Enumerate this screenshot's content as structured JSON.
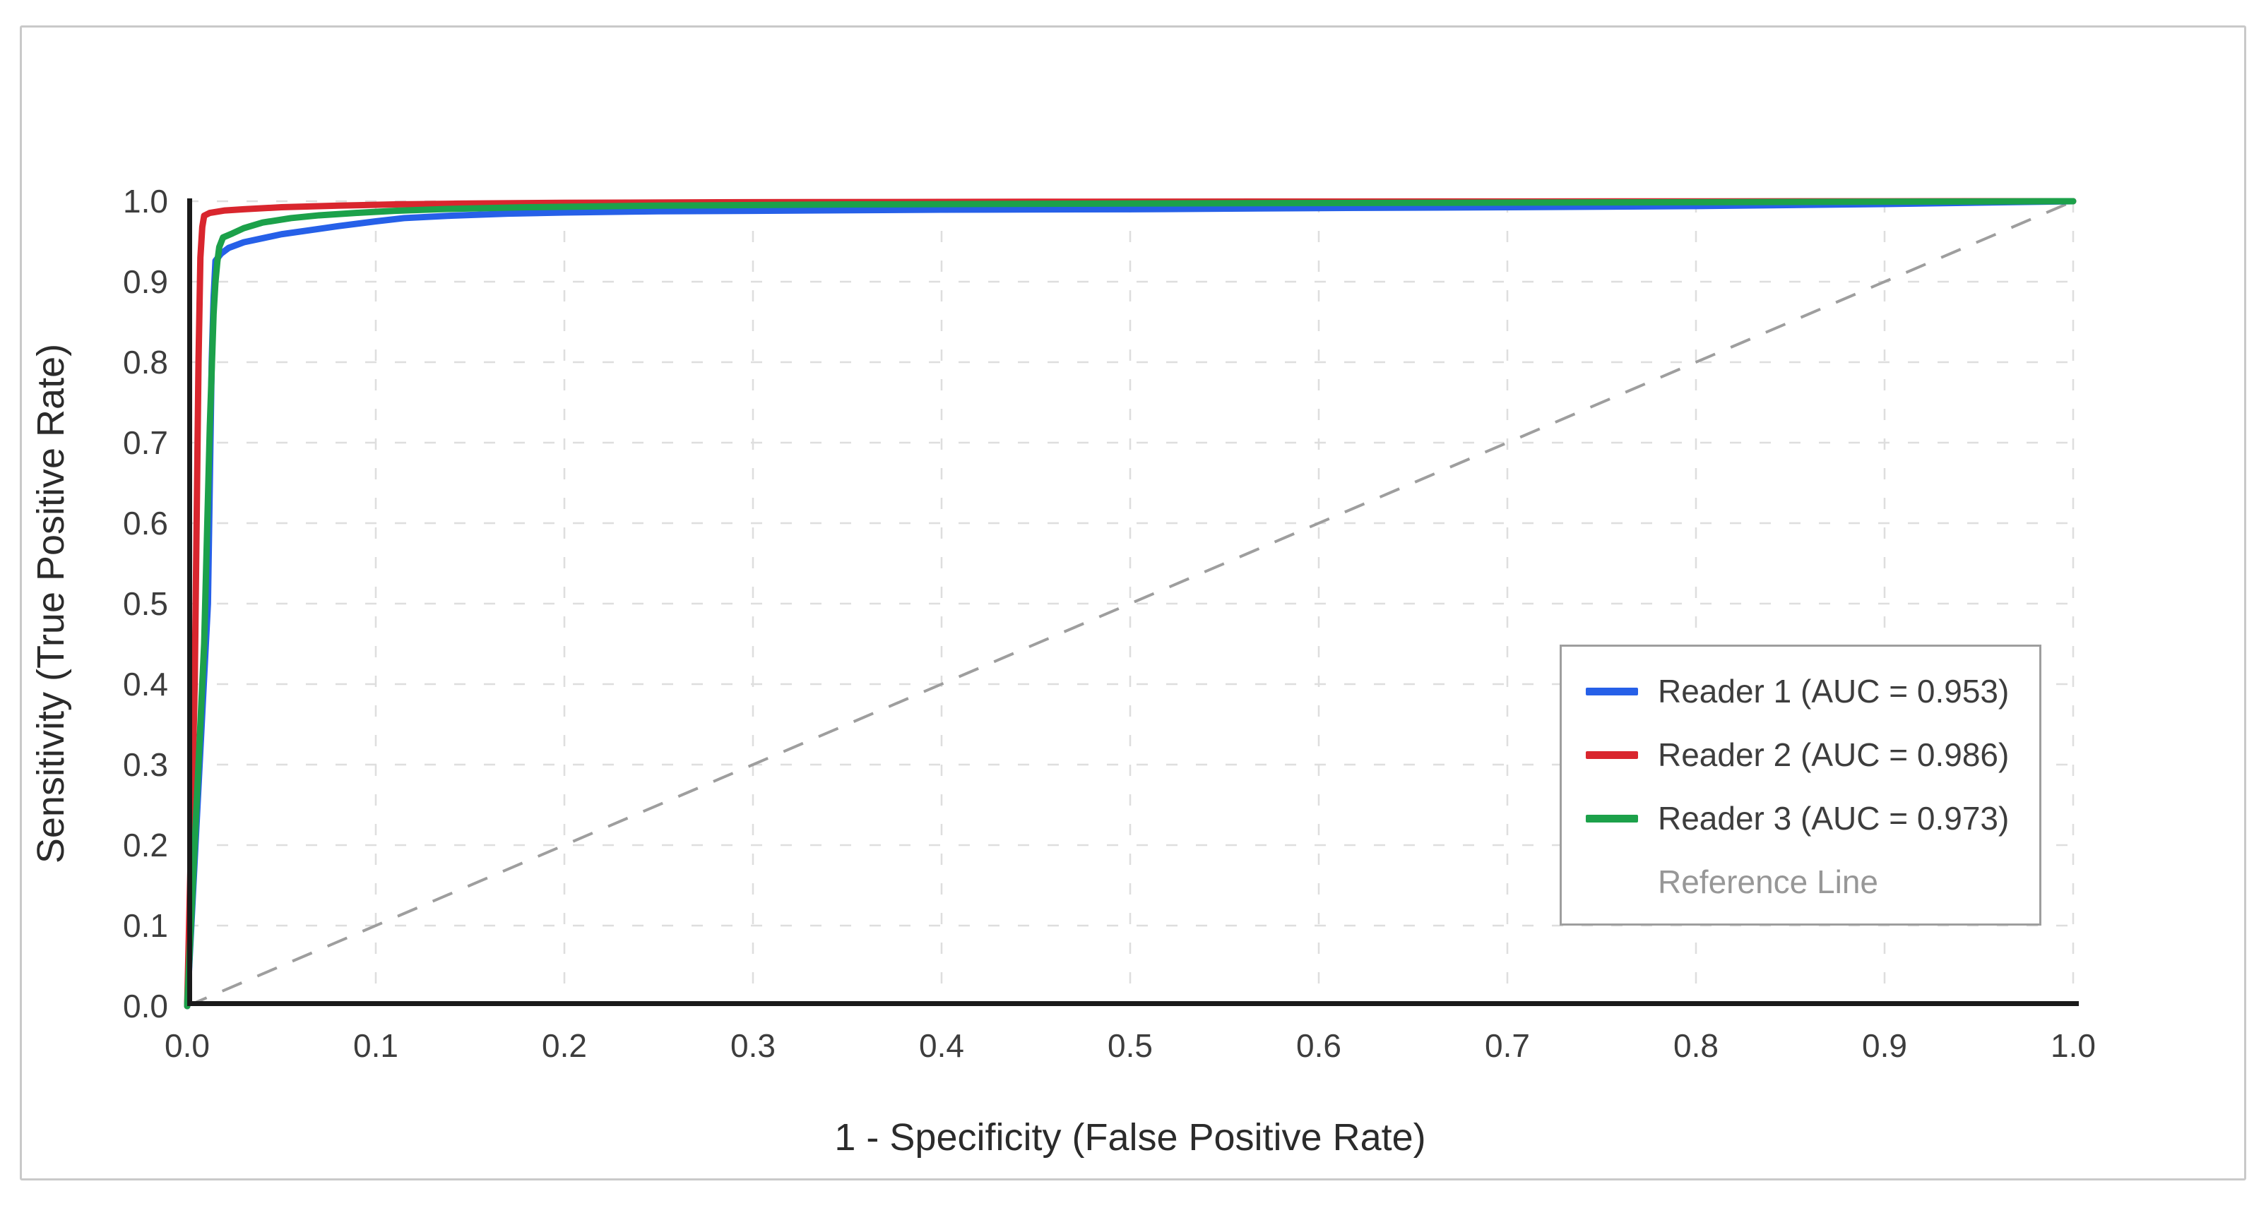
{
  "chart_data": {
    "type": "line",
    "title": "",
    "xlabel": "1 - Specificity (False Positive Rate)",
    "ylabel": "Sensitivity (True Positive Rate)",
    "xlim": [
      0,
      1
    ],
    "ylim": [
      0,
      1
    ],
    "grid": true,
    "grid_style": "dashed",
    "legend_position": "center-right",
    "x_ticks": [
      {
        "v": 0.0,
        "label": "0.0"
      },
      {
        "v": 0.1,
        "label": "0.1"
      },
      {
        "v": 0.2,
        "label": "0.2"
      },
      {
        "v": 0.3,
        "label": "0.3"
      },
      {
        "v": 0.4,
        "label": "0.4"
      },
      {
        "v": 0.5,
        "label": "0.5"
      },
      {
        "v": 0.6,
        "label": "0.6"
      },
      {
        "v": 0.7,
        "label": "0.7"
      },
      {
        "v": 0.8,
        "label": "0.8"
      },
      {
        "v": 0.9,
        "label": "0.9"
      },
      {
        "v": 1.0,
        "label": "1.0"
      }
    ],
    "y_ticks": [
      {
        "v": 0.0,
        "label": "0.0"
      },
      {
        "v": 0.1,
        "label": "0.1"
      },
      {
        "v": 0.2,
        "label": "0.2"
      },
      {
        "v": 0.3,
        "label": "0.3"
      },
      {
        "v": 0.4,
        "label": "0.4"
      },
      {
        "v": 0.5,
        "label": "0.5"
      },
      {
        "v": 0.6,
        "label": "0.6"
      },
      {
        "v": 0.7,
        "label": "0.7"
      },
      {
        "v": 0.8,
        "label": "0.8"
      },
      {
        "v": 0.9,
        "label": "0.9"
      },
      {
        "v": 1.0,
        "label": "1.0"
      }
    ],
    "series": [
      {
        "name": "Reader 1",
        "auc": 0.953,
        "label": "Reader 1 (AUC = 0.953)",
        "color": "#2660e8",
        "points": [
          [
            0,
            0
          ],
          [
            0.011,
            0.5
          ],
          [
            0.013,
            0.8
          ],
          [
            0.014,
            0.88
          ],
          [
            0.015,
            0.926
          ],
          [
            0.018,
            0.935
          ],
          [
            0.022,
            0.942
          ],
          [
            0.03,
            0.949
          ],
          [
            0.04,
            0.954
          ],
          [
            0.05,
            0.959
          ],
          [
            0.065,
            0.964
          ],
          [
            0.08,
            0.969
          ],
          [
            0.1,
            0.975
          ],
          [
            0.115,
            0.979
          ],
          [
            0.14,
            0.982
          ],
          [
            0.17,
            0.9845
          ],
          [
            0.2,
            0.986
          ],
          [
            0.25,
            0.9875
          ],
          [
            0.3,
            0.988
          ],
          [
            0.4,
            0.9895
          ],
          [
            0.5,
            0.99
          ],
          [
            0.6,
            0.9915
          ],
          [
            0.7,
            0.9925
          ],
          [
            0.8,
            0.994
          ],
          [
            0.9,
            0.9965
          ],
          [
            1,
            1
          ]
        ]
      },
      {
        "name": "Reader 2",
        "auc": 0.986,
        "label": "Reader 2 (AUC = 0.986)",
        "color": "#d9262e",
        "points": [
          [
            0,
            0
          ],
          [
            0.004,
            0.4
          ],
          [
            0.006,
            0.8
          ],
          [
            0.007,
            0.93
          ],
          [
            0.008,
            0.968
          ],
          [
            0.009,
            0.982
          ],
          [
            0.012,
            0.9855
          ],
          [
            0.02,
            0.9885
          ],
          [
            0.03,
            0.99
          ],
          [
            0.05,
            0.9925
          ],
          [
            0.08,
            0.9945
          ],
          [
            0.11,
            0.996
          ],
          [
            0.15,
            0.9972
          ],
          [
            0.2,
            0.998
          ],
          [
            0.3,
            0.9988
          ],
          [
            0.45,
            0.9993
          ],
          [
            0.6,
            0.9996
          ],
          [
            0.8,
            0.9998
          ],
          [
            1,
            1
          ]
        ]
      },
      {
        "name": "Reader 3",
        "auc": 0.973,
        "label": "Reader 3 (AUC = 0.973)",
        "color": "#1ca14a",
        "points": [
          [
            0,
            0
          ],
          [
            0.009,
            0.45
          ],
          [
            0.012,
            0.72
          ],
          [
            0.014,
            0.86
          ],
          [
            0.015,
            0.9
          ],
          [
            0.016,
            0.925
          ],
          [
            0.017,
            0.943
          ],
          [
            0.019,
            0.955
          ],
          [
            0.024,
            0.96
          ],
          [
            0.03,
            0.9665
          ],
          [
            0.04,
            0.9735
          ],
          [
            0.055,
            0.979
          ],
          [
            0.07,
            0.9825
          ],
          [
            0.09,
            0.9855
          ],
          [
            0.11,
            0.988
          ],
          [
            0.14,
            0.9905
          ],
          [
            0.18,
            0.9925
          ],
          [
            0.25,
            0.9945
          ],
          [
            0.35,
            0.996
          ],
          [
            0.5,
            0.9972
          ],
          [
            0.65,
            0.998
          ],
          [
            0.8,
            0.9988
          ],
          [
            1,
            1
          ]
        ]
      }
    ],
    "reference_line": {
      "label": "Reference Line",
      "style": "dashed",
      "color": "#9e9e9e",
      "points": [
        [
          0,
          0
        ],
        [
          1,
          1
        ]
      ]
    }
  },
  "legend": {
    "entries": [
      "Reader 1 (AUC = 0.953)",
      "Reader 2 (AUC = 0.986)",
      "Reader 3 (AUC = 0.973)",
      "Reference Line"
    ]
  },
  "colors": {
    "axis": "#1a1a1a",
    "grid": "#dedede",
    "tick_text": "#3d3d3d",
    "frame_border": "#c9c9c9",
    "legend_border": "#9e9e9e",
    "reference": "#9e9e9e"
  }
}
